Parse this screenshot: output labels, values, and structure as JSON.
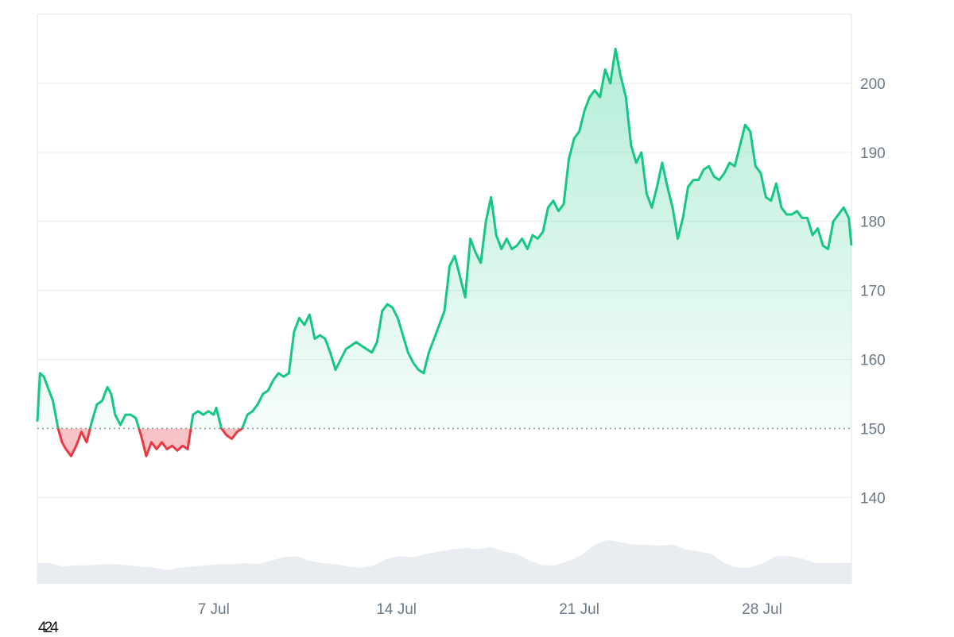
{
  "corner_label": "424",
  "colors": {
    "up_line": "#16c784",
    "up_fill": "#16c784",
    "down_line": "#ea3943",
    "down_fill": "#f4a9ae",
    "grid": "#e8ebef",
    "baseline_dots": "#8a9099",
    "volume": "#e9ecf0",
    "tick_text": "#6b7a88"
  },
  "chart_data": {
    "type": "area",
    "title": "",
    "xlabel": "",
    "ylabel": "",
    "x_unit": "days since start of period (day 0 = 1 Jul)",
    "ylim": [
      127.5,
      210
    ],
    "x_range": [
      0,
      31.4
    ],
    "baseline": 150,
    "grid": true,
    "y_axis_side": "right",
    "y_ticks": [
      140,
      150,
      160,
      170,
      180,
      190,
      200
    ],
    "x_ticks": [
      {
        "label": "7 Jul",
        "x": 6.8
      },
      {
        "label": "14 Jul",
        "x": 13.85
      },
      {
        "label": "21 Jul",
        "x": 20.9
      },
      {
        "label": "28 Jul",
        "x": 27.95
      }
    ],
    "series": [
      {
        "name": "",
        "x": [
          0,
          0.1,
          0.25,
          0.4,
          0.6,
          0.8,
          0.95,
          1.1,
          1.3,
          1.5,
          1.7,
          1.9,
          2.1,
          2.3,
          2.5,
          2.7,
          2.85,
          3.0,
          3.2,
          3.4,
          3.6,
          3.8,
          4.0,
          4.2,
          4.4,
          4.6,
          4.8,
          5.0,
          5.2,
          5.4,
          5.6,
          5.8,
          6.0,
          6.2,
          6.4,
          6.6,
          6.8,
          6.9,
          7.1,
          7.3,
          7.5,
          7.7,
          7.9,
          8.1,
          8.3,
          8.5,
          8.7,
          8.9,
          9.1,
          9.3,
          9.5,
          9.7,
          9.9,
          10.1,
          10.3,
          10.5,
          10.7,
          10.9,
          11.1,
          11.3,
          11.5,
          11.7,
          11.9,
          12.1,
          12.3,
          12.5,
          12.7,
          12.9,
          13.1,
          13.3,
          13.5,
          13.7,
          13.9,
          14.1,
          14.3,
          14.5,
          14.7,
          14.9,
          15.1,
          15.3,
          15.5,
          15.7,
          15.9,
          16.1,
          16.3,
          16.5,
          16.7,
          16.9,
          17.1,
          17.3,
          17.5,
          17.7,
          17.9,
          18.1,
          18.3,
          18.5,
          18.7,
          18.9,
          19.1,
          19.3,
          19.5,
          19.7,
          19.9,
          20.1,
          20.3,
          20.5,
          20.7,
          20.9,
          21.1,
          21.3,
          21.5,
          21.7,
          21.9,
          22.1,
          22.3,
          22.5,
          22.7,
          22.9,
          23.1,
          23.3,
          23.5,
          23.7,
          23.9,
          24.1,
          24.3,
          24.5,
          24.7,
          24.9,
          25.1,
          25.3,
          25.5,
          25.7,
          25.9,
          26.1,
          26.3,
          26.5,
          26.7,
          26.9,
          27.1,
          27.3,
          27.5,
          27.7,
          27.9,
          28.1,
          28.3,
          28.5,
          28.7,
          28.9,
          29.1,
          29.3,
          29.5,
          29.7,
          29.9,
          30.1,
          30.3,
          30.5,
          30.7,
          30.9,
          31.1,
          31.3,
          31.4
        ],
        "y": [
          151,
          158,
          157.5,
          156,
          154,
          150,
          148,
          147,
          146,
          147.5,
          149.5,
          148,
          151,
          153.5,
          154,
          156,
          155,
          152,
          150.5,
          152,
          152,
          151.5,
          149,
          146,
          148,
          147,
          148,
          147,
          147.5,
          146.8,
          147.5,
          147,
          152,
          152.5,
          152,
          152.5,
          152,
          153,
          150,
          149,
          148.5,
          149.5,
          150,
          152,
          152.5,
          153.5,
          155,
          155.5,
          157,
          158,
          157.5,
          158,
          164,
          166,
          165,
          166.5,
          163,
          163.5,
          163,
          161,
          158.5,
          160,
          161.5,
          162,
          162.5,
          162,
          161.5,
          161,
          162.5,
          167,
          168,
          167.5,
          166,
          163.5,
          161,
          159.5,
          158.5,
          158,
          161,
          163,
          165,
          167,
          173.5,
          175,
          172,
          169,
          177.5,
          175.5,
          174,
          180,
          183.5,
          178,
          176,
          177.5,
          176,
          176.5,
          177.5,
          176,
          178,
          177.5,
          178.5,
          182,
          183,
          181.5,
          182.5,
          189,
          192,
          193,
          196,
          198,
          199,
          198,
          202,
          200,
          205,
          201,
          198,
          191,
          188.5,
          190,
          184,
          182,
          185,
          188.5,
          185,
          182,
          177.5,
          180.5,
          185,
          186,
          186,
          187.5,
          188,
          186.5,
          186,
          187,
          188.5,
          188,
          191,
          194,
          193,
          188,
          187,
          183.5,
          183,
          185.5,
          182,
          181,
          181,
          181.5,
          180.5,
          180.5,
          178,
          179,
          176.5,
          176,
          180,
          181,
          182,
          180.5,
          176.5
        ]
      }
    ],
    "volume": {
      "name": "",
      "x": [
        0,
        0.5,
        1.0,
        1.5,
        2.0,
        2.5,
        3.0,
        3.5,
        4.0,
        4.5,
        5.0,
        5.5,
        6.0,
        6.5,
        7.0,
        7.5,
        8.0,
        8.5,
        9.0,
        9.5,
        10.0,
        10.5,
        11.0,
        11.5,
        12.0,
        12.5,
        13.0,
        13.5,
        14.0,
        14.5,
        15.0,
        15.5,
        16.0,
        16.5,
        17.0,
        17.5,
        18.0,
        18.5,
        19.0,
        19.5,
        20.0,
        20.5,
        21.0,
        21.5,
        22.0,
        22.5,
        23.0,
        23.5,
        24.0,
        24.5,
        25.0,
        25.5,
        26.0,
        26.5,
        27.0,
        27.5,
        28.0,
        28.5,
        29.0,
        29.5,
        30.0,
        30.5,
        31.0,
        31.4
      ],
      "values": [
        18,
        18,
        15,
        16,
        16,
        17,
        17,
        16,
        15,
        14,
        12,
        14,
        15,
        16,
        17,
        17,
        18,
        17,
        20,
        23,
        24,
        20,
        18,
        17,
        15,
        14,
        16,
        22,
        24,
        23,
        26,
        28,
        30,
        31,
        30,
        32,
        28,
        26,
        20,
        16,
        16,
        20,
        25,
        34,
        38,
        36,
        34,
        34,
        33,
        34,
        30,
        28,
        26,
        18,
        14,
        14,
        18,
        24,
        24,
        22,
        18,
        18,
        18,
        18
      ],
      "ylim": [
        0,
        100
      ]
    }
  }
}
